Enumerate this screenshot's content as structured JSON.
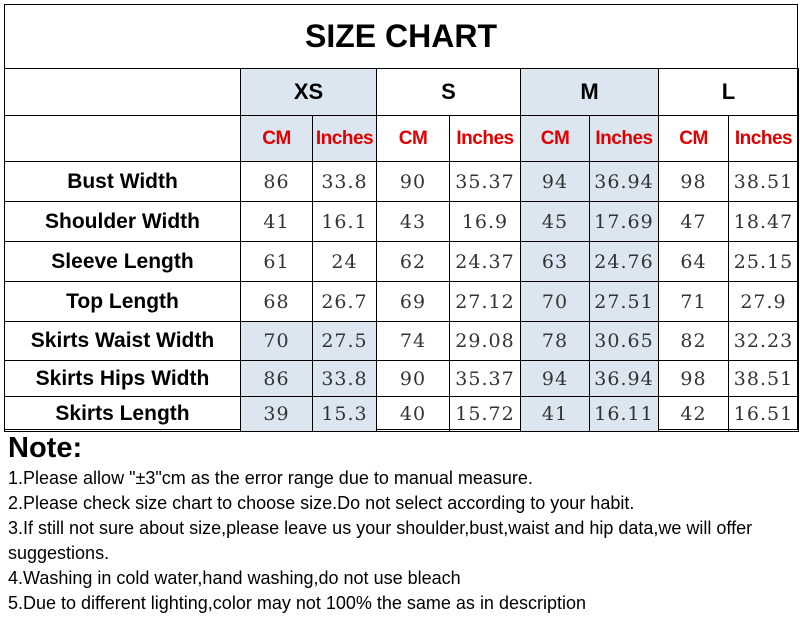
{
  "title": "SIZE CHART",
  "sizes": [
    "XS",
    "S",
    "M",
    "L"
  ],
  "units": [
    "CM",
    "Inches"
  ],
  "rows": [
    {
      "label": "Bust Width",
      "values": [
        "86",
        "33.8",
        "90",
        "35.37",
        "94",
        "36.94",
        "98",
        "38.51"
      ]
    },
    {
      "label": "Shoulder Width",
      "values": [
        "41",
        "16.1",
        "43",
        "16.9",
        "45",
        "17.69",
        "47",
        "18.47"
      ]
    },
    {
      "label": "Sleeve Length",
      "values": [
        "61",
        "24",
        "62",
        "24.37",
        "63",
        "24.76",
        "64",
        "25.15"
      ]
    },
    {
      "label": "Top Length",
      "values": [
        "68",
        "26.7",
        "69",
        "27.12",
        "70",
        "27.51",
        "71",
        "27.9"
      ]
    },
    {
      "label": "Skirts Waist Width",
      "values": [
        "70",
        "27.5",
        "74",
        "29.08",
        "78",
        "30.65",
        "82",
        "32.23"
      ]
    },
    {
      "label": "Skirts Hips Width",
      "values": [
        "86",
        "33.8",
        "90",
        "35.37",
        "94",
        "36.94",
        "98",
        "38.51"
      ]
    },
    {
      "label": "Skirts Length",
      "values": [
        "39",
        "15.3",
        "40",
        "15.72",
        "41",
        "16.11",
        "42",
        "16.51"
      ]
    }
  ],
  "note": {
    "title": "Note:",
    "items": [
      "1.Please allow \"±3\"cm as the error range due to manual measure.",
      "2.Please check size chart to choose size.Do not select according to your habit.",
      "3.If still not sure about size,please leave us your shoulder,bust,waist and hip data,we will offer suggestions.",
      "4.Washing in cold water,hand washing,do not use bleach",
      "5.Due to different lighting,color may not 100% the same as in description"
    ]
  },
  "colors": {
    "unit_text": "#e00000",
    "highlight": "#dce6f0"
  }
}
